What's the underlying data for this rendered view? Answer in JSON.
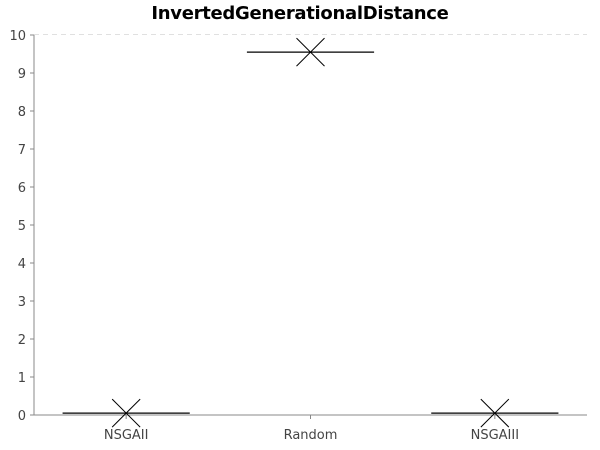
{
  "chart_data": {
    "type": "box",
    "title": "InvertedGenerationalDistance",
    "xlabel": "",
    "ylabel": "",
    "ylim": [
      0,
      10
    ],
    "yticks": [
      0,
      1,
      2,
      3,
      4,
      5,
      6,
      7,
      8,
      9,
      10
    ],
    "grid": true,
    "categories": [
      "NSGAII",
      "Random",
      "NSGAIII"
    ],
    "values": [
      0.05,
      9.55,
      0.05
    ],
    "mean_markers": [
      0.05,
      9.55,
      0.05
    ]
  },
  "colors": {
    "background": "#ffffff",
    "grid": "#c0c0c0",
    "axis": "#888888",
    "box": "#000000"
  }
}
